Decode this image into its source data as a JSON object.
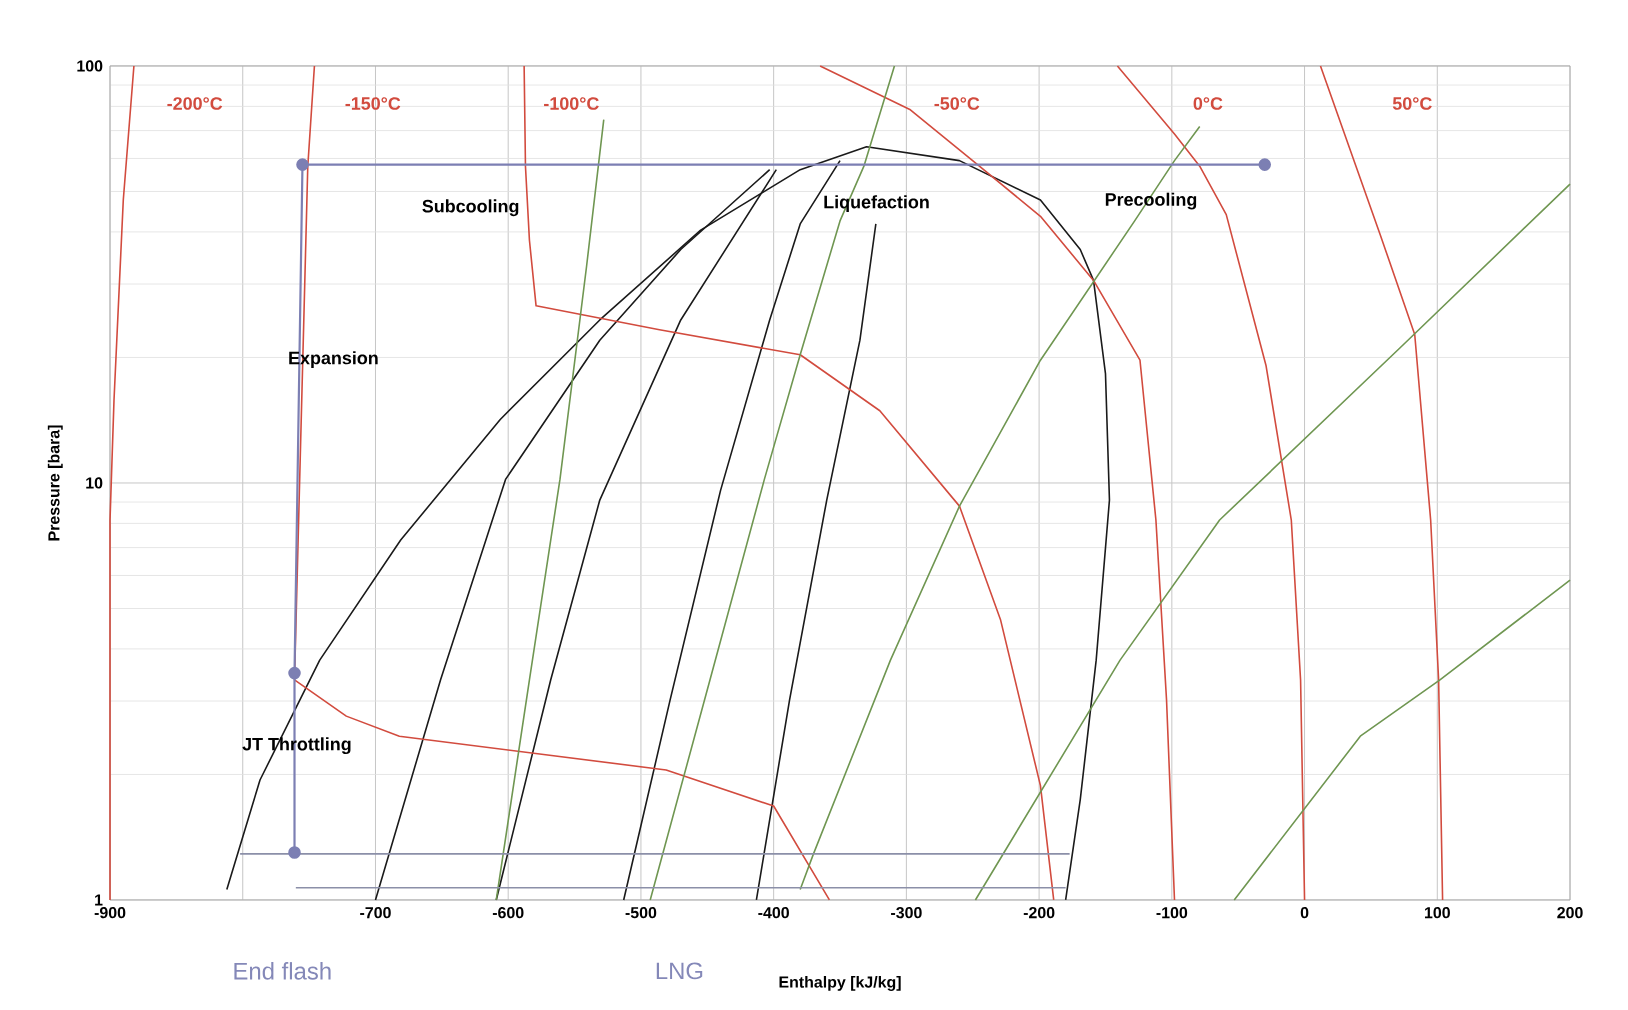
{
  "chart_data": {
    "type": "line",
    "xlabel": "Enthalpy [kJ/kg]",
    "ylabel": "Pressure [bara]",
    "xlim": [
      -900,
      200
    ],
    "ylim": [
      1,
      100
    ],
    "log": "y",
    "grid": true,
    "xticks": [
      -900,
      {
        "value": -800,
        "label": null
      },
      -700,
      -600,
      -500,
      -400,
      -300,
      -200,
      -100,
      0,
      100,
      200
    ],
    "yticks": [
      1,
      10,
      100
    ],
    "series": [
      {
        "color": "#1a1a1a",
        "x": [
          -812,
          -787,
          -742,
          -681,
          -606,
          -531,
          -455,
          -380,
          -330,
          -260,
          -199,
          -169,
          -159,
          -150,
          -147,
          -157,
          -169,
          -180
        ],
        "values": [
          1.06,
          1.94,
          3.76,
          7.3,
          14.2,
          24.6,
          40.4,
          56.4,
          64,
          59.3,
          47.7,
          36.3,
          30.6,
          18.3,
          9.1,
          3.76,
          1.74,
          1
        ]
      },
      {
        "color": "#1a1a1a",
        "x": [
          -700,
          -651,
          -602,
          -531,
          -470,
          -403
        ],
        "values": [
          1,
          3.37,
          10.2,
          22,
          36.3,
          56.4
        ]
      },
      {
        "color": "#1a1a1a",
        "x": [
          -609,
          -568,
          -531,
          -470,
          -398
        ],
        "values": [
          1,
          3.37,
          9.1,
          24.6,
          56.4
        ]
      },
      {
        "color": "#1a1a1a",
        "x": [
          -513,
          -478,
          -440,
          -403,
          -380,
          -350
        ],
        "values": [
          1,
          3.02,
          9.6,
          24.6,
          41.8,
          59.3
        ]
      },
      {
        "color": "#1a1a1a",
        "x": [
          -413,
          -388,
          -360,
          -335,
          -323
        ],
        "values": [
          1,
          3.02,
          9.1,
          22,
          41.8
        ]
      },
      {
        "color": "#d24b3e",
        "x": [
          -882,
          -890,
          -897,
          -900,
          -900
        ],
        "values": [
          100,
          47.7,
          15.8,
          8.15,
          1
        ]
      },
      {
        "color": "#d24b3e",
        "x": [
          -746,
          -751,
          -761,
          -722,
          -682,
          -481,
          -400,
          -358
        ],
        "values": [
          100,
          57.5,
          3.37,
          2.76,
          2.47,
          2.05,
          1.68,
          1
        ]
      },
      {
        "color": "#d24b3e",
        "x": [
          -588,
          -587,
          -584,
          -579,
          -486,
          -380,
          -320,
          -260,
          -229,
          -199,
          -189
        ],
        "values": [
          100,
          57.5,
          38.2,
          26.6,
          23.3,
          20.3,
          14.9,
          8.8,
          4.69,
          1.88,
          1
        ]
      },
      {
        "color": "#d24b3e",
        "x": [
          -365,
          -297,
          -245,
          -199,
          -159,
          -124,
          -112,
          -104,
          -98
        ],
        "values": [
          100,
          78.5,
          57.5,
          43.6,
          30.6,
          19.7,
          8.15,
          3.02,
          1
        ]
      },
      {
        "color": "#d24b3e",
        "x": [
          -141,
          -98,
          -79,
          -59,
          -29,
          -10,
          -3,
          0
        ],
        "values": [
          100,
          68.7,
          57.5,
          44,
          19.1,
          8.15,
          3.37,
          1
        ]
      },
      {
        "color": "#d24b3e",
        "x": [
          12,
          57,
          83,
          95,
          101,
          104
        ],
        "values": [
          100,
          39.4,
          22.7,
          8.15,
          3.37,
          1
        ]
      },
      {
        "color": "#6f9651",
        "x": [
          -528,
          -541,
          -561,
          -584,
          -609
        ],
        "values": [
          74.4,
          33,
          10.2,
          3.37,
          1
        ]
      },
      {
        "color": "#6f9651",
        "x": [
          -309,
          -332,
          -350,
          -380,
          -407,
          -448,
          -493
        ],
        "values": [
          100,
          57.5,
          42.5,
          20.3,
          10.2,
          3.37,
          1
        ]
      },
      {
        "color": "#6f9651",
        "x": [
          -79,
          -98,
          -128,
          -199,
          -260,
          -312,
          -370,
          -380
        ],
        "values": [
          71.6,
          59.3,
          42.5,
          19.7,
          8.8,
          3.76,
          1.29,
          1.06
        ]
      },
      {
        "color": "#6f9651",
        "x": [
          200,
          72,
          -64,
          -139,
          -248
        ],
        "values": [
          52.1,
          21.1,
          8.15,
          3.76,
          1
        ]
      },
      {
        "color": "#6f9651",
        "x": [
          200,
          102,
          42,
          -53
        ],
        "values": [
          5.85,
          3.37,
          2.47,
          1
        ]
      },
      {
        "color": "#8b8fa8",
        "x": [
          -802,
          -177
        ],
        "values": [
          1.29,
          1.29
        ]
      },
      {
        "color": "#8b8fa8",
        "x": [
          -760,
          -180
        ],
        "values": [
          1.07,
          1.07
        ]
      },
      {
        "color": "#7c7fb3",
        "marker": "circle",
        "x": [
          -30,
          -755,
          -761,
          -761
        ],
        "values": [
          58,
          58,
          3.5,
          1.3
        ]
      }
    ],
    "annotations": [
      "-200°C",
      "-150°C",
      "-100°C",
      "-50°C",
      "0°C",
      "50°C",
      "Subcooling",
      "Liquefaction",
      "Precooling",
      "Expansion",
      "JT Throttling",
      "End flash",
      "LNG"
    ]
  }
}
